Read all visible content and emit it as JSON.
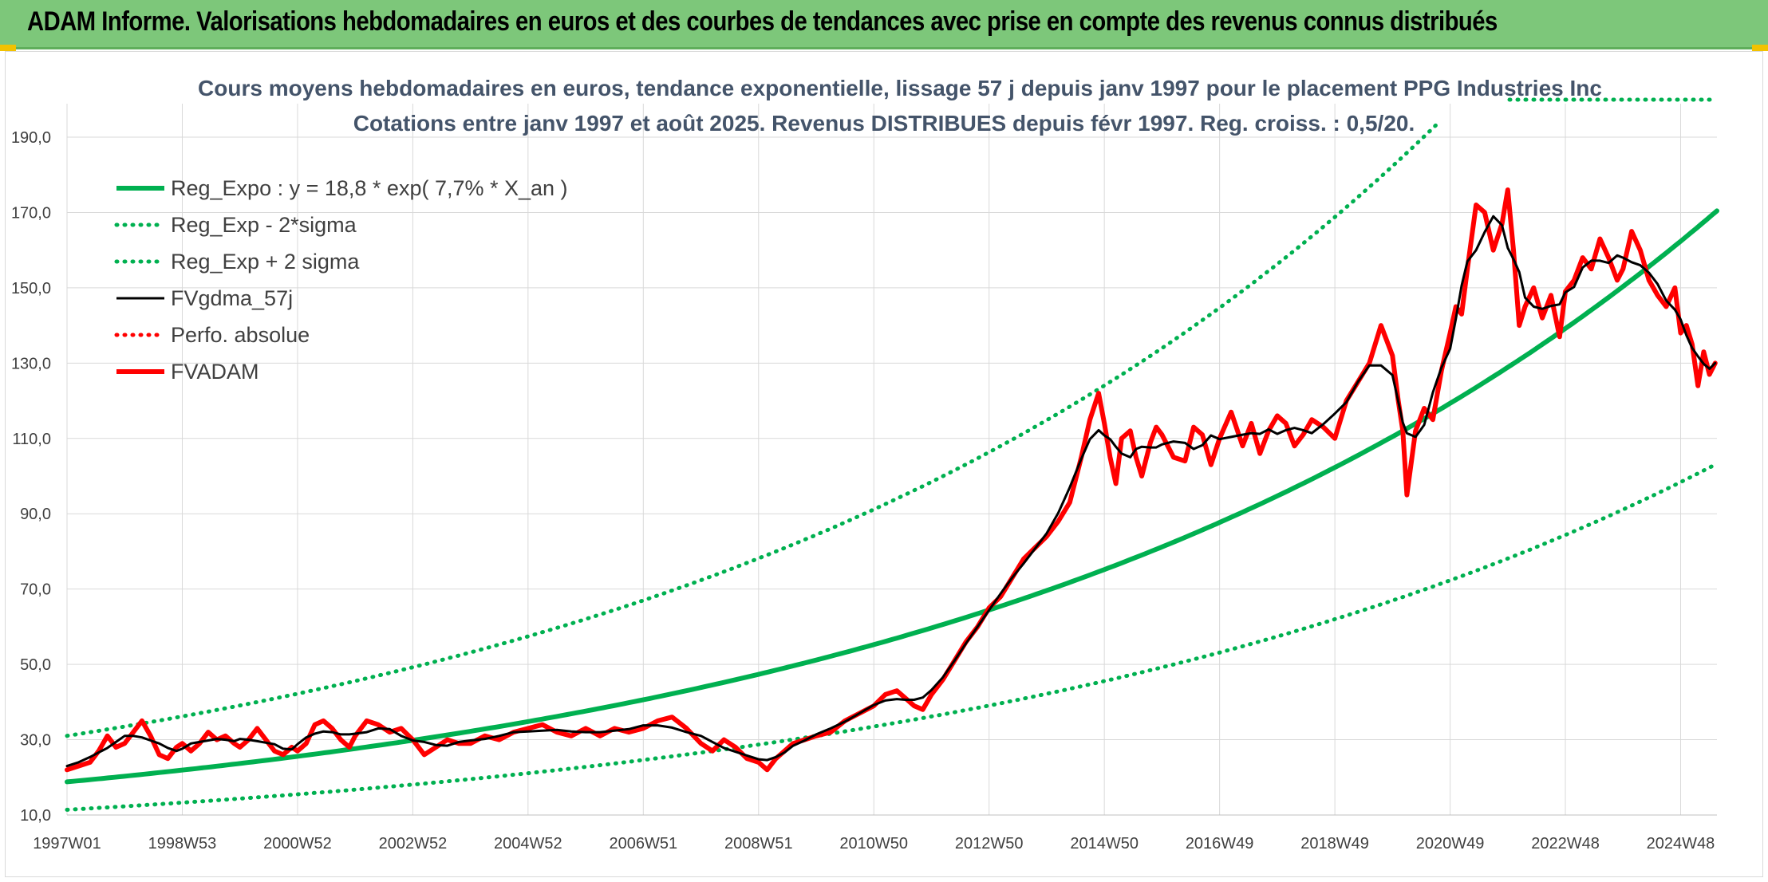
{
  "header": {
    "title": "ADAM Informe. Valorisations hebdomadaires en euros et des courbes de tendances avec prise en compte des revenus connus distribués"
  },
  "chart_data": {
    "type": "line",
    "title": "Cours moyens hebdomadaires en euros, tendance exponentielle, lissage 57 j depuis janv 1997 pour le placement PPG Industries Inc",
    "subtitle": "Cotations entre janv 1997 et août 2025. Revenus DISTRIBUES depuis févr 1997. Reg. croiss. : 0,5/20.",
    "xlabel": "",
    "ylabel": "",
    "ylim": [
      10,
      190
    ],
    "xlim": [
      1997.0,
      2025.63
    ],
    "yticks": [
      "10,0",
      "30,0",
      "50,0",
      "70,0",
      "90,0",
      "110,0",
      "130,0",
      "150,0",
      "170,0",
      "190,0"
    ],
    "xticks": [
      {
        "label": "1997W01",
        "x": 1997.0
      },
      {
        "label": "1998W53",
        "x": 1999.0
      },
      {
        "label": "2000W52",
        "x": 2001.0
      },
      {
        "label": "2002W52",
        "x": 2003.0
      },
      {
        "label": "2004W52",
        "x": 2005.0
      },
      {
        "label": "2006W51",
        "x": 2007.0
      },
      {
        "label": "2008W51",
        "x": 2009.0
      },
      {
        "label": "2010W50",
        "x": 2011.0
      },
      {
        "label": "2012W50",
        "x": 2013.0
      },
      {
        "label": "2014W50",
        "x": 2015.0
      },
      {
        "label": "2016W49",
        "x": 2017.0
      },
      {
        "label": "2018W49",
        "x": 2019.0
      },
      {
        "label": "2020W49",
        "x": 2021.0
      },
      {
        "label": "2022W48",
        "x": 2023.0
      },
      {
        "label": "2024W48",
        "x": 2025.0
      }
    ],
    "grid": true,
    "legend_position": "top-left",
    "regression": {
      "a": 18.8,
      "rate": 0.077,
      "sigma_factor": 1.65
    },
    "series": [
      {
        "name": "Reg_Expo : y = 18,8 * exp( 7,7% *  X_an )",
        "color": "#00b050",
        "style": "solid-thick",
        "kind": "exp"
      },
      {
        "name": "Reg_Exp - 2*sigma",
        "color": "#00b050",
        "style": "dotted",
        "kind": "exp_lower"
      },
      {
        "name": "Reg_Exp + 2 sigma",
        "color": "#00b050",
        "style": "dotted",
        "kind": "exp_upper"
      },
      {
        "name": "FVgdma_57j",
        "color": "#000000",
        "style": "solid",
        "kind": "smooth"
      },
      {
        "name": "Perfo. absolue",
        "color": "#ff0000",
        "style": "dotted",
        "kind": "none"
      },
      {
        "name": "FVADAM",
        "color": "#ff0000",
        "style": "solid-thick",
        "kind": "data",
        "x": [
          1997.0,
          1997.2,
          1997.4,
          1997.55,
          1997.7,
          1997.85,
          1998.0,
          1998.15,
          1998.3,
          1998.45,
          1998.6,
          1998.75,
          1998.9,
          1999.0,
          1999.15,
          1999.3,
          1999.45,
          1999.6,
          1999.75,
          1999.9,
          2000.0,
          2000.15,
          2000.3,
          2000.45,
          2000.6,
          2000.75,
          2000.9,
          2001.0,
          2001.15,
          2001.3,
          2001.45,
          2001.6,
          2001.75,
          2001.9,
          2002.0,
          2002.2,
          2002.4,
          2002.6,
          2002.8,
          2003.0,
          2003.2,
          2003.4,
          2003.6,
          2003.8,
          2004.0,
          2004.25,
          2004.5,
          2004.75,
          2005.0,
          2005.25,
          2005.5,
          2005.75,
          2006.0,
          2006.25,
          2006.5,
          2006.75,
          2007.0,
          2007.25,
          2007.5,
          2007.75,
          2008.0,
          2008.2,
          2008.4,
          2008.6,
          2008.8,
          2009.0,
          2009.15,
          2009.3,
          2009.45,
          2009.6,
          2009.8,
          2010.0,
          2010.25,
          2010.5,
          2010.75,
          2011.0,
          2011.2,
          2011.4,
          2011.55,
          2011.7,
          2011.85,
          2012.0,
          2012.2,
          2012.4,
          2012.6,
          2012.8,
          2013.0,
          2013.2,
          2013.4,
          2013.6,
          2013.8,
          2014.0,
          2014.2,
          2014.4,
          2014.6,
          2014.75,
          2014.9,
          2015.0,
          2015.1,
          2015.2,
          2015.3,
          2015.45,
          2015.55,
          2015.65,
          2015.8,
          2015.9,
          2016.0,
          2016.2,
          2016.4,
          2016.55,
          2016.7,
          2016.85,
          2017.0,
          2017.2,
          2017.4,
          2017.55,
          2017.7,
          2017.85,
          2018.0,
          2018.15,
          2018.3,
          2018.45,
          2018.6,
          2018.8,
          2019.0,
          2019.2,
          2019.4,
          2019.6,
          2019.8,
          2020.0,
          2020.1,
          2020.18,
          2020.25,
          2020.4,
          2020.55,
          2020.7,
          2020.85,
          2021.0,
          2021.1,
          2021.2,
          2021.3,
          2021.45,
          2021.6,
          2021.75,
          2021.9,
          2022.0,
          2022.1,
          2022.2,
          2022.3,
          2022.45,
          2022.6,
          2022.75,
          2022.9,
          2023.0,
          2023.15,
          2023.3,
          2023.45,
          2023.6,
          2023.75,
          2023.9,
          2024.0,
          2024.15,
          2024.3,
          2024.45,
          2024.6,
          2024.75,
          2024.9,
          2025.0,
          2025.1,
          2025.2,
          2025.3,
          2025.4,
          2025.5,
          2025.6
        ],
        "y": [
          22,
          23,
          24,
          27,
          31,
          28,
          29,
          32,
          35,
          31,
          26,
          25,
          28,
          29,
          27,
          29,
          32,
          30,
          31,
          29,
          28,
          30,
          33,
          30,
          27,
          26,
          28,
          27,
          29,
          34,
          35,
          33,
          30,
          28,
          31,
          35,
          34,
          32,
          33,
          30,
          26,
          28,
          30,
          29,
          29,
          31,
          30,
          32,
          33,
          34,
          32,
          31,
          33,
          31,
          33,
          32,
          33,
          35,
          36,
          33,
          29,
          27,
          30,
          28,
          25,
          24,
          22,
          25,
          27,
          29,
          30,
          31,
          32,
          35,
          37,
          39,
          42,
          43,
          41,
          39,
          38,
          42,
          46,
          51,
          56,
          60,
          65,
          68,
          73,
          78,
          81,
          84,
          88,
          93,
          105,
          115,
          122,
          114,
          105,
          98,
          110,
          112,
          105,
          100,
          109,
          113,
          111,
          105,
          104,
          113,
          111,
          103,
          110,
          117,
          108,
          114,
          106,
          112,
          116,
          114,
          108,
          111,
          115,
          113,
          110,
          120,
          125,
          130,
          140,
          132,
          120,
          112,
          95,
          112,
          118,
          115,
          128,
          138,
          145,
          143,
          155,
          172,
          170,
          160,
          167,
          176,
          160,
          140,
          145,
          150,
          142,
          148,
          137,
          149,
          152,
          158,
          155,
          163,
          158,
          152,
          155,
          165,
          160,
          152,
          148,
          145,
          150,
          138,
          140,
          135,
          124,
          133,
          127,
          130
        ]
      }
    ]
  }
}
